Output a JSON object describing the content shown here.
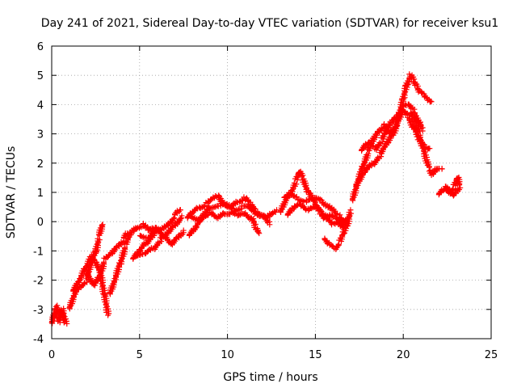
{
  "chart_data": {
    "type": "scatter",
    "title": "Day 241 of 2021, Sidereal Day-to-day VTEC variation (SDTVAR) for receiver ksu1",
    "xlabel": "GPS time / hours",
    "ylabel": "SDTVAR / TECUs",
    "xlim": [
      0,
      25
    ],
    "ylim": [
      -4,
      6
    ],
    "xticks": [
      0,
      5,
      10,
      15,
      20,
      25
    ],
    "yticks": [
      -4,
      -3,
      -2,
      -1,
      0,
      1,
      2,
      3,
      4,
      5,
      6
    ],
    "grid": true,
    "marker": "+",
    "color": "#ff0000",
    "series": [
      {
        "name": "ksu1",
        "segments": [
          [
            [
              0.0,
              -3.5
            ],
            [
              0.2,
              -3.1
            ],
            [
              0.4,
              -3.4
            ],
            [
              0.6,
              -3.0
            ],
            [
              0.8,
              -3.5
            ],
            [
              0.6,
              -3.2
            ],
            [
              0.3,
              -2.9
            ],
            [
              0.1,
              -3.3
            ]
          ],
          [
            [
              1.0,
              -3.0
            ],
            [
              1.3,
              -2.5
            ],
            [
              1.6,
              -2.2
            ],
            [
              2.0,
              -2.0
            ],
            [
              2.2,
              -1.5
            ],
            [
              2.5,
              -1.0
            ],
            [
              2.7,
              -0.5
            ],
            [
              2.9,
              -0.1
            ]
          ],
          [
            [
              1.2,
              -2.4
            ],
            [
              1.6,
              -2.0
            ],
            [
              1.9,
              -1.6
            ],
            [
              2.2,
              -1.2
            ],
            [
              2.5,
              -1.4
            ],
            [
              2.8,
              -1.8
            ],
            [
              3.0,
              -2.5
            ],
            [
              3.2,
              -3.2
            ]
          ],
          [
            [
              2.0,
              -1.8
            ],
            [
              2.4,
              -2.2
            ],
            [
              2.7,
              -1.9
            ],
            [
              3.0,
              -1.3
            ],
            [
              3.4,
              -1.1
            ],
            [
              3.8,
              -0.8
            ],
            [
              4.1,
              -0.6
            ],
            [
              4.3,
              -0.4
            ]
          ],
          [
            [
              3.3,
              -2.5
            ],
            [
              3.6,
              -2.0
            ],
            [
              3.9,
              -1.4
            ],
            [
              4.2,
              -0.8
            ],
            [
              4.5,
              -0.4
            ],
            [
              4.8,
              -0.2
            ],
            [
              5.2,
              -0.1
            ],
            [
              5.5,
              -0.3
            ],
            [
              5.9,
              -0.2
            ]
          ],
          [
            [
              4.6,
              -1.3
            ],
            [
              5.0,
              -1.0
            ],
            [
              5.4,
              -0.7
            ],
            [
              5.8,
              -0.4
            ],
            [
              6.2,
              -0.3
            ],
            [
              6.6,
              -0.1
            ],
            [
              7.0,
              0.2
            ],
            [
              7.3,
              0.4
            ]
          ],
          [
            [
              4.8,
              -1.2
            ],
            [
              5.3,
              -1.1
            ],
            [
              5.8,
              -0.9
            ],
            [
              6.2,
              -0.6
            ],
            [
              6.6,
              -0.4
            ],
            [
              7.0,
              -0.1
            ],
            [
              7.4,
              0.2
            ]
          ],
          [
            [
              5.0,
              -0.5
            ],
            [
              5.5,
              -0.6
            ],
            [
              6.0,
              -0.2
            ],
            [
              6.4,
              -0.5
            ],
            [
              6.8,
              -0.8
            ],
            [
              7.2,
              -0.5
            ],
            [
              7.5,
              -0.3
            ]
          ],
          [
            [
              7.7,
              0.1
            ],
            [
              8.0,
              0.3
            ],
            [
              8.4,
              0.5
            ],
            [
              8.8,
              0.6
            ],
            [
              9.2,
              0.8
            ],
            [
              9.5,
              0.9
            ],
            [
              9.8,
              0.6
            ],
            [
              10.2,
              0.5
            ],
            [
              10.6,
              0.7
            ],
            [
              11.0,
              0.8
            ],
            [
              11.3,
              0.6
            ],
            [
              11.6,
              0.4
            ],
            [
              11.9,
              0.2
            ],
            [
              12.2,
              0.1
            ],
            [
              12.5,
              0.3
            ],
            [
              12.8,
              0.4
            ]
          ],
          [
            [
              7.8,
              -0.5
            ],
            [
              8.2,
              -0.2
            ],
            [
              8.6,
              0.2
            ],
            [
              9.0,
              0.3
            ],
            [
              9.4,
              0.1
            ],
            [
              9.8,
              0.3
            ],
            [
              10.2,
              0.3
            ],
            [
              10.6,
              0.2
            ],
            [
              11.0,
              0.3
            ],
            [
              11.4,
              0.1
            ],
            [
              11.6,
              -0.2
            ],
            [
              11.8,
              -0.4
            ]
          ],
          [
            [
              7.8,
              0.2
            ],
            [
              8.4,
              0.0
            ],
            [
              9.0,
              0.5
            ],
            [
              9.6,
              0.6
            ],
            [
              10.0,
              0.5
            ],
            [
              10.4,
              0.4
            ],
            [
              10.8,
              0.5
            ],
            [
              11.2,
              0.5
            ],
            [
              11.6,
              0.3
            ],
            [
              12.0,
              0.2
            ],
            [
              12.4,
              -0.1
            ]
          ],
          [
            [
              13.0,
              0.3
            ],
            [
              13.3,
              0.7
            ],
            [
              13.6,
              1.0
            ],
            [
              13.9,
              1.4
            ],
            [
              14.1,
              1.7
            ],
            [
              14.3,
              1.5
            ],
            [
              14.6,
              1.0
            ],
            [
              15.0,
              0.6
            ],
            [
              15.3,
              0.3
            ],
            [
              15.6,
              0.1
            ],
            [
              16.0,
              -0.1
            ],
            [
              16.3,
              0.0
            ],
            [
              16.6,
              -0.2
            ],
            [
              16.8,
              0.1
            ]
          ],
          [
            [
              13.2,
              0.8
            ],
            [
              13.6,
              0.9
            ],
            [
              14.0,
              0.8
            ],
            [
              14.5,
              0.7
            ],
            [
              15.0,
              0.8
            ],
            [
              15.4,
              0.7
            ],
            [
              15.8,
              0.5
            ],
            [
              16.1,
              0.3
            ],
            [
              16.4,
              0.2
            ],
            [
              16.7,
              0.0
            ]
          ],
          [
            [
              13.4,
              0.2
            ],
            [
              13.8,
              0.5
            ],
            [
              14.2,
              0.6
            ],
            [
              14.6,
              0.4
            ],
            [
              15.0,
              0.5
            ],
            [
              15.4,
              0.3
            ],
            [
              15.8,
              0.2
            ],
            [
              16.2,
              0.1
            ],
            [
              16.6,
              -0.1
            ]
          ],
          [
            [
              15.5,
              -0.6
            ],
            [
              15.8,
              -0.8
            ],
            [
              16.1,
              -0.9
            ],
            [
              16.4,
              -0.7
            ],
            [
              16.6,
              -0.4
            ],
            [
              16.8,
              -0.1
            ],
            [
              17.0,
              0.4
            ]
          ],
          [
            [
              17.1,
              0.7
            ],
            [
              17.4,
              1.3
            ],
            [
              17.7,
              1.9
            ],
            [
              18.0,
              2.4
            ],
            [
              18.3,
              2.8
            ],
            [
              18.6,
              3.1
            ],
            [
              18.9,
              3.3
            ],
            [
              19.2,
              3.0
            ],
            [
              19.5,
              3.2
            ],
            [
              19.8,
              3.7
            ],
            [
              20.0,
              4.2
            ],
            [
              20.2,
              4.7
            ],
            [
              20.4,
              5.0
            ],
            [
              20.6,
              4.8
            ],
            [
              20.8,
              4.6
            ],
            [
              21.0,
              4.4
            ],
            [
              21.2,
              4.3
            ],
            [
              21.4,
              4.2
            ],
            [
              21.6,
              4.1
            ]
          ],
          [
            [
              17.3,
              1.2
            ],
            [
              17.8,
              1.7
            ],
            [
              18.3,
              2.0
            ],
            [
              18.7,
              2.3
            ],
            [
              19.1,
              2.7
            ],
            [
              19.4,
              3.0
            ],
            [
              19.7,
              3.4
            ],
            [
              20.0,
              3.8
            ],
            [
              20.3,
              3.6
            ],
            [
              20.6,
              3.2
            ],
            [
              20.9,
              2.8
            ],
            [
              21.2,
              2.6
            ],
            [
              21.5,
              2.5
            ]
          ],
          [
            [
              17.6,
              2.4
            ],
            [
              18.0,
              2.7
            ],
            [
              18.4,
              2.5
            ],
            [
              18.8,
              2.8
            ],
            [
              19.2,
              3.3
            ],
            [
              19.6,
              3.6
            ],
            [
              20.0,
              3.9
            ],
            [
              20.3,
              4.0
            ],
            [
              20.6,
              3.8
            ],
            [
              20.9,
              3.4
            ],
            [
              21.1,
              3.1
            ]
          ],
          [
            [
              20.4,
              3.7
            ],
            [
              20.7,
              3.4
            ],
            [
              20.9,
              3.0
            ],
            [
              21.1,
              2.6
            ],
            [
              21.3,
              2.1
            ],
            [
              21.5,
              1.8
            ],
            [
              21.7,
              1.6
            ],
            [
              21.9,
              1.8
            ],
            [
              22.2,
              1.8
            ]
          ],
          [
            [
              22.0,
              0.9
            ],
            [
              22.3,
              1.1
            ],
            [
              22.6,
              1.0
            ],
            [
              22.9,
              1.2
            ],
            [
              23.1,
              1.5
            ],
            [
              23.2,
              1.2
            ],
            [
              22.8,
              0.9
            ],
            [
              22.4,
              1.2
            ]
          ]
        ]
      }
    ]
  }
}
